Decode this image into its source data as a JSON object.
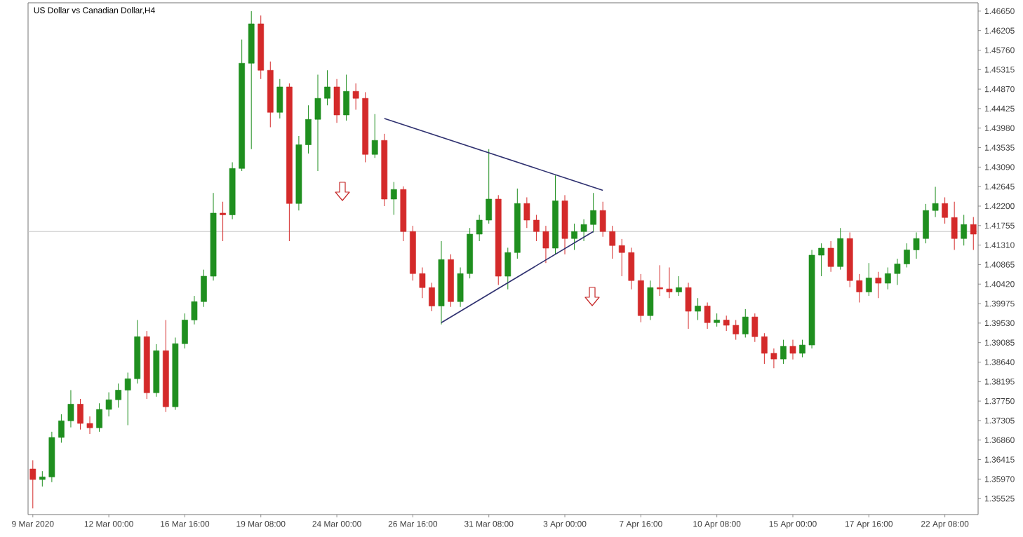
{
  "chart_data": {
    "type": "candlestick",
    "title": "US Dollar vs Canadian Dollar,H4",
    "categories": [
      "9 Mar 2020",
      null,
      null,
      null,
      null,
      null,
      null,
      null,
      "12 Mar 00:00",
      null,
      null,
      null,
      null,
      null,
      null,
      null,
      "16 Mar 16:00",
      null,
      null,
      null,
      null,
      null,
      null,
      null,
      "19 Mar 08:00",
      null,
      null,
      null,
      null,
      null,
      null,
      null,
      "24 Mar 00:00",
      null,
      null,
      null,
      null,
      null,
      null,
      null,
      "26 Mar 16:00",
      null,
      null,
      null,
      null,
      null,
      null,
      null,
      "31 Mar 08:00",
      null,
      null,
      null,
      null,
      null,
      null,
      null,
      "3 Apr 00:00",
      null,
      null,
      null,
      null,
      null,
      null,
      null,
      "7 Apr 16:00",
      null,
      null,
      null,
      null,
      null,
      null,
      null,
      "10 Apr 08:00",
      null,
      null,
      null,
      null,
      null,
      null,
      null,
      "15 Apr 00:00",
      null,
      null,
      null,
      null,
      null,
      null,
      null,
      "17 Apr 16:00",
      null,
      null,
      null,
      null,
      null,
      null,
      null,
      "22 Apr 08:00",
      null,
      null,
      null
    ],
    "ohlc": [
      [
        1.362,
        1.364,
        1.353,
        1.3596
      ],
      [
        1.3596,
        1.3615,
        1.358,
        1.3602
      ],
      [
        1.3602,
        1.3705,
        1.359,
        1.3692
      ],
      [
        1.3692,
        1.3745,
        1.368,
        1.373
      ],
      [
        1.373,
        1.38,
        1.3715,
        1.3768
      ],
      [
        1.3768,
        1.378,
        1.371,
        1.3724
      ],
      [
        1.3724,
        1.374,
        1.37,
        1.3714
      ],
      [
        1.3714,
        1.377,
        1.3705,
        1.3756
      ],
      [
        1.3756,
        1.3795,
        1.374,
        1.3778
      ],
      [
        1.3778,
        1.3815,
        1.376,
        1.38
      ],
      [
        1.38,
        1.384,
        1.372,
        1.3826
      ],
      [
        1.3826,
        1.396,
        1.3815,
        1.3922
      ],
      [
        1.3922,
        1.3935,
        1.378,
        1.3794
      ],
      [
        1.3794,
        1.3905,
        1.3785,
        1.389
      ],
      [
        1.389,
        1.396,
        1.375,
        1.3762
      ],
      [
        1.3762,
        1.392,
        1.3755,
        1.3906
      ],
      [
        1.3906,
        1.3975,
        1.3895,
        1.396
      ],
      [
        1.396,
        1.4015,
        1.395,
        1.4002
      ],
      [
        1.4002,
        1.4075,
        1.399,
        1.406
      ],
      [
        1.406,
        1.425,
        1.405,
        1.4204
      ],
      [
        1.4204,
        1.423,
        1.414,
        1.42
      ],
      [
        1.42,
        1.432,
        1.419,
        1.4306
      ],
      [
        1.4306,
        1.46,
        1.43,
        1.4546
      ],
      [
        1.4546,
        1.4665,
        1.435,
        1.4636
      ],
      [
        1.4636,
        1.4655,
        1.451,
        1.453
      ],
      [
        1.453,
        1.455,
        1.44,
        1.4434
      ],
      [
        1.4434,
        1.451,
        1.442,
        1.4492
      ],
      [
        1.4492,
        1.45,
        1.414,
        1.4226
      ],
      [
        1.4226,
        1.438,
        1.421,
        1.436
      ],
      [
        1.436,
        1.445,
        1.434,
        1.4418
      ],
      [
        1.4418,
        1.452,
        1.43,
        1.4466
      ],
      [
        1.4466,
        1.453,
        1.445,
        1.4492
      ],
      [
        1.4492,
        1.451,
        1.441,
        1.4428
      ],
      [
        1.4428,
        1.452,
        1.4415,
        1.4482
      ],
      [
        1.4482,
        1.45,
        1.444,
        1.4466
      ],
      [
        1.4466,
        1.448,
        1.432,
        1.4338
      ],
      [
        1.4338,
        1.443,
        1.433,
        1.437
      ],
      [
        1.437,
        1.4385,
        1.422,
        1.4236
      ],
      [
        1.4236,
        1.4275,
        1.42,
        1.4258
      ],
      [
        1.4258,
        1.4265,
        1.414,
        1.4162
      ],
      [
        1.4162,
        1.4175,
        1.405,
        1.4066
      ],
      [
        1.4066,
        1.408,
        1.401,
        1.4034
      ],
      [
        1.4034,
        1.4045,
        1.398,
        1.3992
      ],
      [
        1.3992,
        1.414,
        1.395,
        1.4098
      ],
      [
        1.4098,
        1.411,
        1.399,
        1.4002
      ],
      [
        1.4002,
        1.408,
        1.399,
        1.4066
      ],
      [
        1.4066,
        1.417,
        1.4055,
        1.4156
      ],
      [
        1.4156,
        1.42,
        1.414,
        1.4188
      ],
      [
        1.4188,
        1.435,
        1.418,
        1.4236
      ],
      [
        1.4236,
        1.4245,
        1.404,
        1.406
      ],
      [
        1.406,
        1.4125,
        1.403,
        1.4114
      ],
      [
        1.4114,
        1.426,
        1.41,
        1.4226
      ],
      [
        1.4226,
        1.424,
        1.417,
        1.4188
      ],
      [
        1.4188,
        1.42,
        1.414,
        1.4162
      ],
      [
        1.4162,
        1.4175,
        1.409,
        1.4124
      ],
      [
        1.4124,
        1.429,
        1.411,
        1.4232
      ],
      [
        1.4232,
        1.4245,
        1.411,
        1.4146
      ],
      [
        1.4146,
        1.418,
        1.412,
        1.4162
      ],
      [
        1.4162,
        1.419,
        1.414,
        1.4178
      ],
      [
        1.4178,
        1.425,
        1.416,
        1.421
      ],
      [
        1.421,
        1.423,
        1.415,
        1.4162
      ],
      [
        1.4162,
        1.4175,
        1.41,
        1.413
      ],
      [
        1.413,
        1.4145,
        1.406,
        1.4114
      ],
      [
        1.4114,
        1.4125,
        1.403,
        1.405
      ],
      [
        1.405,
        1.4065,
        1.3955,
        1.397
      ],
      [
        1.397,
        1.405,
        1.396,
        1.4034
      ],
      [
        1.4034,
        1.4085,
        1.4015,
        1.4031
      ],
      [
        1.4031,
        1.408,
        1.401,
        1.4024
      ],
      [
        1.4024,
        1.406,
        1.4015,
        1.4034
      ],
      [
        1.4034,
        1.4045,
        1.394,
        1.398
      ],
      [
        1.398,
        1.401,
        1.396,
        1.3992
      ],
      [
        1.3992,
        1.4,
        1.394,
        1.3954
      ],
      [
        1.3954,
        1.3975,
        1.3945,
        1.396
      ],
      [
        1.396,
        1.397,
        1.3935,
        1.3948
      ],
      [
        1.3948,
        1.396,
        1.3915,
        1.3928
      ],
      [
        1.3928,
        1.3985,
        1.392,
        1.3967
      ],
      [
        1.3967,
        1.3975,
        1.391,
        1.3922
      ],
      [
        1.3922,
        1.393,
        1.386,
        1.3884
      ],
      [
        1.3884,
        1.3895,
        1.385,
        1.3871
      ],
      [
        1.3871,
        1.3915,
        1.386,
        1.39
      ],
      [
        1.39,
        1.3915,
        1.387,
        1.3884
      ],
      [
        1.3884,
        1.3915,
        1.3875,
        1.3903
      ],
      [
        1.3903,
        1.412,
        1.3895,
        1.4108
      ],
      [
        1.4108,
        1.4135,
        1.406,
        1.4124
      ],
      [
        1.4124,
        1.414,
        1.407,
        1.4082
      ],
      [
        1.4082,
        1.417,
        1.4075,
        1.4146
      ],
      [
        1.4146,
        1.416,
        1.4035,
        1.405
      ],
      [
        1.405,
        1.4065,
        1.4,
        1.4024
      ],
      [
        1.4024,
        1.409,
        1.4015,
        1.4056
      ],
      [
        1.4056,
        1.407,
        1.401,
        1.4044
      ],
      [
        1.4044,
        1.408,
        1.403,
        1.4066
      ],
      [
        1.4066,
        1.41,
        1.404,
        1.4088
      ],
      [
        1.4088,
        1.4135,
        1.408,
        1.412
      ],
      [
        1.412,
        1.416,
        1.41,
        1.4146
      ],
      [
        1.4146,
        1.4225,
        1.4135,
        1.421
      ],
      [
        1.421,
        1.4264,
        1.4195,
        1.4226
      ],
      [
        1.4226,
        1.424,
        1.418,
        1.4194
      ],
      [
        1.4194,
        1.423,
        1.412,
        1.4146
      ],
      [
        1.4146,
        1.42,
        1.413,
        1.4178
      ],
      [
        1.4178,
        1.4195,
        1.412,
        1.4156
      ]
    ],
    "colors": [
      "#d42a2a",
      "#1f8f1f",
      "#1f8f1f",
      "#1f8f1f",
      "#1f8f1f",
      "#d42a2a",
      "#d42a2a",
      "#1f8f1f",
      "#1f8f1f",
      "#1f8f1f",
      "#1f8f1f",
      "#1f8f1f",
      "#d42a2a",
      "#1f8f1f",
      "#d42a2a",
      "#1f8f1f",
      "#1f8f1f",
      "#1f8f1f",
      "#1f8f1f",
      "#1f8f1f",
      "#d42a2a",
      "#1f8f1f",
      "#1f8f1f",
      "#1f8f1f",
      "#d42a2a",
      "#d42a2a",
      "#1f8f1f",
      "#d42a2a",
      "#1f8f1f",
      "#1f8f1f",
      "#1f8f1f",
      "#1f8f1f",
      "#d42a2a",
      "#1f8f1f",
      "#d42a2a",
      "#d42a2a",
      "#1f8f1f",
      "#d42a2a",
      "#1f8f1f",
      "#d42a2a",
      "#d42a2a",
      "#d42a2a",
      "#d42a2a",
      "#1f8f1f",
      "#d42a2a",
      "#1f8f1f",
      "#1f8f1f",
      "#1f8f1f",
      "#1f8f1f",
      "#d42a2a",
      "#1f8f1f",
      "#1f8f1f",
      "#d42a2a",
      "#d42a2a",
      "#d42a2a",
      "#1f8f1f",
      "#d42a2a",
      "#1f8f1f",
      "#1f8f1f",
      "#1f8f1f",
      "#d42a2a",
      "#d42a2a",
      "#d42a2a",
      "#d42a2a",
      "#d42a2a",
      "#1f8f1f",
      "#d42a2a",
      "#d42a2a",
      "#1f8f1f",
      "#d42a2a",
      "#1f8f1f",
      "#d42a2a",
      "#1f8f1f",
      "#d42a2a",
      "#d42a2a",
      "#1f8f1f",
      "#d42a2a",
      "#d42a2a",
      "#d42a2a",
      "#1f8f1f",
      "#d42a2a",
      "#1f8f1f",
      "#1f8f1f",
      "#1f8f1f",
      "#d42a2a",
      "#1f8f1f",
      "#d42a2a",
      "#d42a2a",
      "#1f8f1f",
      "#d42a2a",
      "#1f8f1f",
      "#1f8f1f",
      "#1f8f1f",
      "#1f8f1f",
      "#1f8f1f",
      "#1f8f1f",
      "#d42a2a",
      "#d42a2a",
      "#1f8f1f",
      "#d42a2a"
    ],
    "series": [
      {
        "type": "line",
        "color": "#2f3170",
        "values": [
          null,
          null,
          null,
          null,
          null,
          null,
          null,
          null,
          null,
          null,
          null,
          null,
          null,
          null,
          null,
          null,
          null,
          null,
          null,
          null,
          null,
          null,
          null,
          null,
          null,
          null,
          null,
          null,
          null,
          null,
          null,
          null,
          null,
          null,
          null,
          null,
          null,
          1.442,
          null,
          null,
          null,
          null,
          null,
          null,
          null,
          null,
          null,
          null,
          null,
          null,
          null,
          null,
          null,
          null,
          null,
          null,
          null,
          null,
          null,
          null,
          1.4256,
          null,
          null,
          null,
          null,
          null,
          null,
          null,
          null,
          null,
          null,
          null,
          null,
          null,
          null,
          null,
          null,
          null,
          null,
          null,
          null,
          null,
          null,
          null,
          null,
          null,
          null,
          null,
          null,
          null,
          null,
          null,
          null,
          null,
          null,
          null,
          null,
          null,
          null,
          null
        ]
      },
      {
        "type": "line",
        "color": "#2f3170",
        "values": [
          null,
          null,
          null,
          null,
          null,
          null,
          null,
          null,
          null,
          null,
          null,
          null,
          null,
          null,
          null,
          null,
          null,
          null,
          null,
          null,
          null,
          null,
          null,
          null,
          null,
          null,
          null,
          null,
          null,
          null,
          null,
          null,
          null,
          null,
          null,
          null,
          null,
          null,
          null,
          null,
          null,
          null,
          null,
          1.3954,
          null,
          null,
          null,
          null,
          null,
          null,
          null,
          null,
          null,
          null,
          null,
          null,
          null,
          null,
          null,
          1.4162,
          null,
          null,
          null,
          null,
          null,
          null,
          null,
          null,
          null,
          null,
          null,
          null,
          null,
          null,
          null,
          null,
          null,
          null,
          null,
          null,
          null,
          null,
          null,
          null,
          null,
          null,
          null,
          null,
          null,
          null,
          null,
          null,
          null,
          null,
          null,
          null,
          null,
          null,
          null,
          null
        ]
      }
    ],
    "ref_lines": [
      {
        "axis": "y",
        "value": 1.4162,
        "color": "#c8c8c8"
      }
    ],
    "ylim": [
      1.3516,
      1.4684
    ],
    "yticks": [
      {
        "value": 1.4665,
        "label": "1.46650"
      },
      {
        "value": 1.46205,
        "label": "1.46205"
      },
      {
        "value": 1.4576,
        "label": "1.45760"
      },
      {
        "value": 1.45315,
        "label": "1.45315"
      },
      {
        "value": 1.4487,
        "label": "1.44870"
      },
      {
        "value": 1.44425,
        "label": "1.44425"
      },
      {
        "value": 1.4398,
        "label": "1.43980"
      },
      {
        "value": 1.43535,
        "label": "1.43535"
      },
      {
        "value": 1.4309,
        "label": "1.43090"
      },
      {
        "value": 1.42645,
        "label": "1.42645"
      },
      {
        "value": 1.422,
        "label": "1.42200"
      },
      {
        "value": 1.41755,
        "label": "1.41755"
      },
      {
        "value": 1.4131,
        "label": "1.41310"
      },
      {
        "value": 1.40865,
        "label": "1.40865"
      },
      {
        "value": 1.4042,
        "label": "1.40420"
      },
      {
        "value": 1.39975,
        "label": "1.39975"
      },
      {
        "value": 1.3953,
        "label": "1.39530"
      },
      {
        "value": 1.39085,
        "label": "1.39085"
      },
      {
        "value": 1.3864,
        "label": "1.38640"
      },
      {
        "value": 1.38195,
        "label": "1.38195"
      },
      {
        "value": 1.3775,
        "label": "1.37750"
      },
      {
        "value": 1.37305,
        "label": "1.37305"
      },
      {
        "value": 1.3686,
        "label": "1.36860"
      },
      {
        "value": 1.36415,
        "label": "1.36415"
      },
      {
        "value": 1.3597,
        "label": "1.35970"
      },
      {
        "value": 1.35525,
        "label": "1.35525"
      }
    ]
  }
}
